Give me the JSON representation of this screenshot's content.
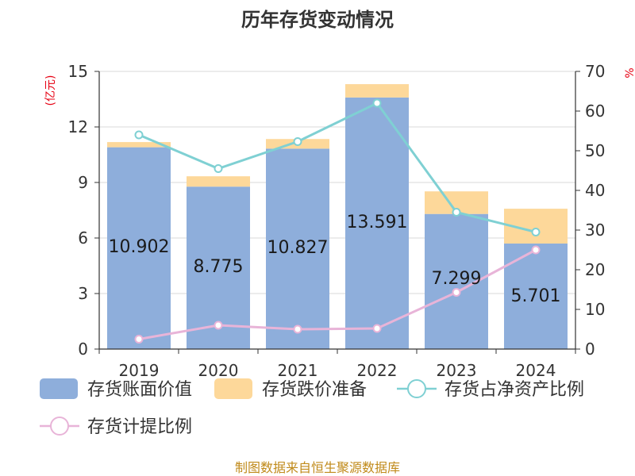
{
  "chart_data": {
    "type": "bar",
    "title": "历年存货变动情况",
    "categories": [
      "2019",
      "2020",
      "2021",
      "2022",
      "2023",
      "2024"
    ],
    "y_left": {
      "unit": "(亿元)",
      "ylim": [
        0,
        15
      ],
      "ticks": [
        "0",
        "3",
        "6",
        "9",
        "12",
        "15"
      ]
    },
    "y_right": {
      "unit": "%",
      "ylim": [
        0,
        70
      ],
      "ticks": [
        "0",
        "10",
        "20",
        "30",
        "40",
        "50",
        "60",
        "70"
      ]
    },
    "grid": true,
    "legend_position": "bottom",
    "series": [
      {
        "name": "存货账面价值",
        "type": "bar",
        "stack": "main",
        "axis": "left",
        "color": "#8eaedb",
        "values": [
          10.902,
          8.775,
          10.827,
          13.591,
          7.299,
          5.701
        ],
        "labels": [
          "10.902",
          "8.775",
          "10.827",
          "13.591",
          "7.299",
          "5.701"
        ]
      },
      {
        "name": "存货跌价准备",
        "type": "bar",
        "stack": "main",
        "axis": "left",
        "color": "#fdd89a",
        "values": [
          0.28,
          0.56,
          0.52,
          0.72,
          1.22,
          1.88
        ]
      },
      {
        "name": "存货占净资产比例",
        "type": "line",
        "axis": "right",
        "color": "#7fd0d3",
        "values": [
          54.0,
          45.5,
          52.3,
          62.0,
          34.5,
          29.5
        ]
      },
      {
        "name": "存货计提比例",
        "type": "line",
        "axis": "right",
        "color": "#e8b4d8",
        "values": [
          2.5,
          6.0,
          5.0,
          5.2,
          14.3,
          25.0
        ]
      }
    ]
  },
  "source": "制图数据来自恒生聚源数据库"
}
